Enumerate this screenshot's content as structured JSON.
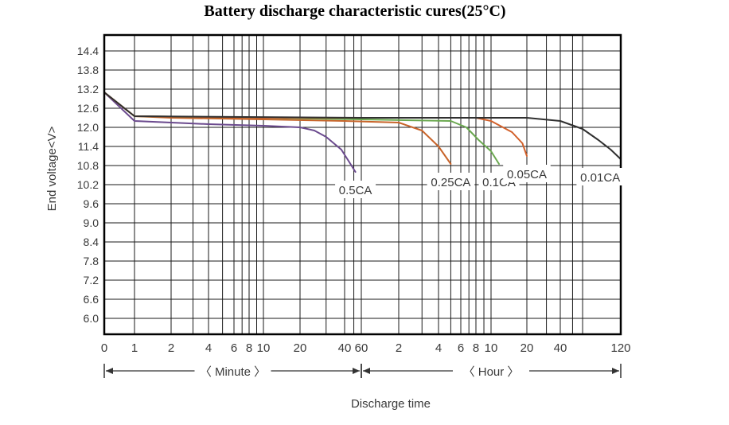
{
  "chart_data": {
    "type": "line",
    "title": "Battery discharge characteristic cures(25°C)",
    "ylabel": "End voltage<V>",
    "xlabel": "Discharge time",
    "x_scale": "log",
    "ylim": [
      5.5,
      14.9
    ],
    "grid": true,
    "y_ticks": [
      "14.4",
      "13.8",
      "13.2",
      "12.6",
      "12.0",
      "11.4",
      "10.8",
      "10.2",
      "9.6",
      "9.0",
      "8.4",
      "7.8",
      "7.2",
      "6.6",
      "6.0"
    ],
    "x_ticks": [
      "0",
      "1",
      "2",
      "4",
      "6",
      "8",
      "10",
      "20",
      "40",
      "60",
      "2",
      "4",
      "6",
      "8",
      "10",
      "20",
      "40",
      "120"
    ],
    "x_tick_minutes": [
      0,
      1,
      2,
      4,
      6,
      8,
      10,
      20,
      40,
      60,
      120,
      240,
      360,
      480,
      600,
      1200,
      2400,
      7200
    ],
    "x_segments": [
      {
        "label": "Minute",
        "from_min": 0,
        "to_min": 60
      },
      {
        "label": "Hour",
        "from_min": 60,
        "to_min": 7200
      }
    ],
    "series": [
      {
        "name": "0.5CA",
        "color": "#6b4a8e",
        "points": [
          [
            0,
            13.1
          ],
          [
            1,
            12.2
          ],
          [
            2,
            12.15
          ],
          [
            4,
            12.1
          ],
          [
            10,
            12.05
          ],
          [
            20,
            12.0
          ],
          [
            25,
            11.9
          ],
          [
            30,
            11.7
          ],
          [
            38,
            11.3
          ],
          [
            45,
            10.9
          ],
          [
            52,
            10.6
          ]
        ]
      },
      {
        "name": "0.25CA",
        "color": "#c8642a",
        "points": [
          [
            0,
            13.1
          ],
          [
            1,
            12.35
          ],
          [
            2,
            12.3
          ],
          [
            10,
            12.25
          ],
          [
            40,
            12.2
          ],
          [
            120,
            12.15
          ],
          [
            180,
            11.9
          ],
          [
            240,
            11.4
          ],
          [
            300,
            10.85
          ]
        ]
      },
      {
        "name": "0.1CA",
        "color": "#6aa84f",
        "points": [
          [
            0,
            13.1
          ],
          [
            1,
            12.35
          ],
          [
            10,
            12.3
          ],
          [
            60,
            12.25
          ],
          [
            300,
            12.2
          ],
          [
            400,
            12.0
          ],
          [
            500,
            11.6
          ],
          [
            600,
            11.25
          ],
          [
            700,
            10.85
          ]
        ]
      },
      {
        "name": "0.05CA",
        "color": "#d2602a",
        "points": [
          [
            0,
            13.1
          ],
          [
            1,
            12.35
          ],
          [
            10,
            12.3
          ],
          [
            60,
            12.3
          ],
          [
            480,
            12.3
          ],
          [
            600,
            12.2
          ],
          [
            900,
            11.85
          ],
          [
            1100,
            11.5
          ],
          [
            1200,
            11.1
          ]
        ]
      },
      {
        "name": "0.01CA",
        "color": "#303030",
        "points": [
          [
            0,
            13.1
          ],
          [
            1,
            12.35
          ],
          [
            60,
            12.3
          ],
          [
            600,
            12.3
          ],
          [
            1200,
            12.3
          ],
          [
            2400,
            12.2
          ],
          [
            3600,
            11.95
          ],
          [
            4800,
            11.6
          ],
          [
            6000,
            11.3
          ],
          [
            7200,
            11.0
          ]
        ]
      }
    ]
  }
}
